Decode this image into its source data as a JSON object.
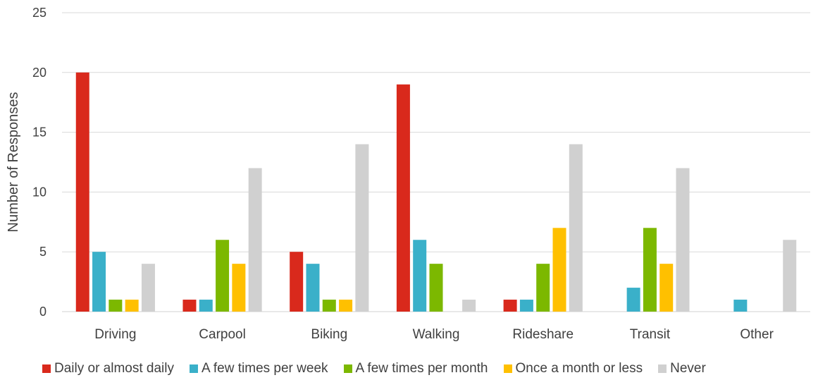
{
  "chart_data": {
    "type": "bar",
    "ylabel": "Number of Responses",
    "ylim": [
      0,
      25
    ],
    "yticks": [
      0,
      5,
      10,
      15,
      20,
      25
    ],
    "grid": true,
    "legend_position": "bottom",
    "categories": [
      "Driving",
      "Carpool",
      "Biking",
      "Walking",
      "Rideshare",
      "Transit",
      "Other"
    ],
    "series": [
      {
        "name": "Daily or almost daily",
        "color": "#d9291c",
        "values": [
          20,
          1,
          5,
          19,
          1,
          0,
          0
        ]
      },
      {
        "name": "A few times per week",
        "color": "#3ab0c9",
        "values": [
          5,
          1,
          4,
          6,
          1,
          2,
          1
        ]
      },
      {
        "name": "A few times per month",
        "color": "#7cb800",
        "values": [
          1,
          6,
          1,
          4,
          4,
          7,
          0
        ]
      },
      {
        "name": "Once a month or less",
        "color": "#ffc000",
        "values": [
          1,
          4,
          1,
          0,
          7,
          4,
          0
        ]
      },
      {
        "name": "Never",
        "color": "#d0d0d0",
        "values": [
          4,
          12,
          14,
          1,
          14,
          12,
          6
        ]
      }
    ]
  }
}
